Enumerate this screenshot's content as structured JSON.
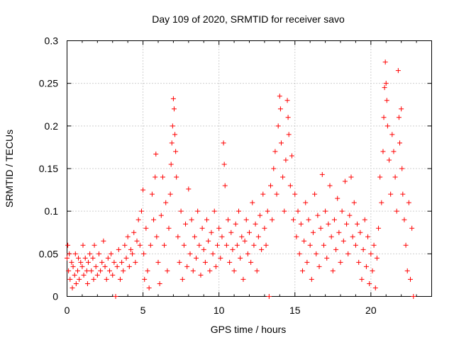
{
  "chart_data": {
    "type": "scatter",
    "title": "Day 109 of 2020, SRMTID for receiver savo",
    "xlabel": "GPS time / hours",
    "ylabel": "SRMTID / TECUs",
    "xlim": [
      0,
      24
    ],
    "ylim": [
      0,
      0.3
    ],
    "xticks": [
      0,
      5,
      10,
      15,
      20
    ],
    "xtick_labels": [
      "0",
      "5",
      "10",
      "15",
      "20"
    ],
    "yticks": [
      0,
      0.05,
      0.1,
      0.15,
      0.2,
      0.25,
      0.3
    ],
    "ytick_labels": [
      "0",
      "0.05",
      "0.1",
      "0.15",
      "0.2",
      "0.25",
      "0.3"
    ],
    "grid": true,
    "marker": "+",
    "color": "#ff0000",
    "series": [
      {
        "name": "SRMTID",
        "points": [
          [
            0.0,
            0.045
          ],
          [
            0.05,
            0.06
          ],
          [
            0.1,
            0.03
          ],
          [
            0.15,
            0.05
          ],
          [
            0.2,
            0.02
          ],
          [
            0.3,
            0.04
          ],
          [
            0.35,
            0.01
          ],
          [
            0.4,
            0.035
          ],
          [
            0.5,
            0.025
          ],
          [
            0.55,
            0.05
          ],
          [
            0.6,
            0.015
          ],
          [
            0.7,
            0.03
          ],
          [
            0.75,
            0.045
          ],
          [
            0.8,
            0.02
          ],
          [
            0.9,
            0.04
          ],
          [
            1.0,
            0.035
          ],
          [
            1.05,
            0.06
          ],
          [
            1.1,
            0.025
          ],
          [
            1.2,
            0.045
          ],
          [
            1.3,
            0.03
          ],
          [
            1.35,
            0.015
          ],
          [
            1.4,
            0.04
          ],
          [
            1.5,
            0.05
          ],
          [
            1.6,
            0.03
          ],
          [
            1.7,
            0.045
          ],
          [
            1.75,
            0.02
          ],
          [
            1.8,
            0.06
          ],
          [
            1.9,
            0.035
          ],
          [
            2.0,
            0.025
          ],
          [
            2.1,
            0.05
          ],
          [
            2.2,
            0.03
          ],
          [
            2.3,
            0.04
          ],
          [
            2.4,
            0.065
          ],
          [
            2.5,
            0.035
          ],
          [
            2.6,
            0.02
          ],
          [
            2.7,
            0.045
          ],
          [
            2.8,
            0.03
          ],
          [
            2.9,
            0.05
          ],
          [
            3.0,
            0.025
          ],
          [
            3.1,
            0.04
          ],
          [
            3.2,
            0.0
          ],
          [
            3.3,
            0.035
          ],
          [
            3.4,
            0.055
          ],
          [
            3.5,
            0.02
          ],
          [
            3.6,
            0.04
          ],
          [
            3.7,
            0.03
          ],
          [
            3.8,
            0.06
          ],
          [
            3.9,
            0.045
          ],
          [
            4.0,
            0.07
          ],
          [
            4.1,
            0.035
          ],
          [
            4.2,
            0.055
          ],
          [
            4.3,
            0.05
          ],
          [
            4.4,
            0.075
          ],
          [
            4.5,
            0.04
          ],
          [
            4.6,
            0.065
          ],
          [
            4.7,
            0.09
          ],
          [
            4.8,
            0.06
          ],
          [
            4.9,
            0.1
          ],
          [
            5.0,
            0.125
          ],
          [
            5.05,
            0.05
          ],
          [
            5.1,
            0.02
          ],
          [
            5.2,
            0.08
          ],
          [
            5.3,
            0.03
          ],
          [
            5.4,
            0.01
          ],
          [
            5.5,
            0.06
          ],
          [
            5.6,
            0.12
          ],
          [
            5.7,
            0.09
          ],
          [
            5.8,
            0.14
          ],
          [
            5.85,
            0.167
          ],
          [
            5.9,
            0.07
          ],
          [
            6.0,
            0.04
          ],
          [
            6.1,
            0.015
          ],
          [
            6.2,
            0.095
          ],
          [
            6.3,
            0.14
          ],
          [
            6.4,
            0.06
          ],
          [
            6.5,
            0.11
          ],
          [
            6.6,
            0.03
          ],
          [
            6.7,
            0.08
          ],
          [
            6.8,
            0.12
          ],
          [
            6.85,
            0.155
          ],
          [
            6.9,
            0.18
          ],
          [
            6.95,
            0.2
          ],
          [
            7.0,
            0.232
          ],
          [
            7.05,
            0.22
          ],
          [
            7.1,
            0.19
          ],
          [
            7.15,
            0.17
          ],
          [
            7.2,
            0.14
          ],
          [
            7.3,
            0.07
          ],
          [
            7.4,
            0.04
          ],
          [
            7.5,
            0.1
          ],
          [
            7.6,
            0.02
          ],
          [
            7.7,
            0.06
          ],
          [
            7.8,
            0.085
          ],
          [
            7.9,
            0.035
          ],
          [
            8.0,
            0.126
          ],
          [
            8.1,
            0.05
          ],
          [
            8.2,
            0.09
          ],
          [
            8.3,
            0.03
          ],
          [
            8.4,
            0.07
          ],
          [
            8.5,
            0.045
          ],
          [
            8.6,
            0.1
          ],
          [
            8.7,
            0.06
          ],
          [
            8.8,
            0.025
          ],
          [
            8.9,
            0.08
          ],
          [
            9.0,
            0.055
          ],
          [
            9.1,
            0.04
          ],
          [
            9.2,
            0.09
          ],
          [
            9.3,
            0.065
          ],
          [
            9.4,
            0.03
          ],
          [
            9.5,
            0.075
          ],
          [
            9.6,
            0.05
          ],
          [
            9.7,
            0.1
          ],
          [
            9.8,
            0.035
          ],
          [
            9.9,
            0.06
          ],
          [
            10.0,
            0.08
          ],
          [
            10.1,
            0.045
          ],
          [
            10.2,
            0.07
          ],
          [
            10.3,
            0.18
          ],
          [
            10.35,
            0.155
          ],
          [
            10.4,
            0.13
          ],
          [
            10.5,
            0.06
          ],
          [
            10.6,
            0.09
          ],
          [
            10.7,
            0.04
          ],
          [
            10.8,
            0.075
          ],
          [
            10.9,
            0.055
          ],
          [
            11.0,
            0.03
          ],
          [
            11.1,
            0.085
          ],
          [
            11.2,
            0.06
          ],
          [
            11.3,
            0.1
          ],
          [
            11.4,
            0.045
          ],
          [
            11.5,
            0.07
          ],
          [
            11.6,
            0.02
          ],
          [
            11.7,
            0.065
          ],
          [
            11.8,
            0.09
          ],
          [
            11.9,
            0.05
          ],
          [
            12.0,
            0.075
          ],
          [
            12.1,
            0.04
          ],
          [
            12.2,
            0.11
          ],
          [
            12.3,
            0.06
          ],
          [
            12.4,
            0.085
          ],
          [
            12.5,
            0.03
          ],
          [
            12.6,
            0.07
          ],
          [
            12.7,
            0.095
          ],
          [
            12.8,
            0.055
          ],
          [
            12.9,
            0.12
          ],
          [
            13.0,
            0.08
          ],
          [
            13.1,
            0.06
          ],
          [
            13.2,
            0.1
          ],
          [
            13.3,
            0.0
          ],
          [
            13.4,
            0.13
          ],
          [
            13.5,
            0.09
          ],
          [
            13.6,
            0.15
          ],
          [
            13.7,
            0.17
          ],
          [
            13.8,
            0.12
          ],
          [
            13.9,
            0.2
          ],
          [
            14.0,
            0.235
          ],
          [
            14.05,
            0.22
          ],
          [
            14.1,
            0.18
          ],
          [
            14.2,
            0.14
          ],
          [
            14.3,
            0.1
          ],
          [
            14.4,
            0.16
          ],
          [
            14.5,
            0.23
          ],
          [
            14.55,
            0.21
          ],
          [
            14.6,
            0.19
          ],
          [
            14.7,
            0.13
          ],
          [
            14.8,
            0.165
          ],
          [
            14.9,
            0.09
          ],
          [
            15.0,
            0.12
          ],
          [
            15.1,
            0.07
          ],
          [
            15.2,
            0.1
          ],
          [
            15.3,
            0.05
          ],
          [
            15.4,
            0.085
          ],
          [
            15.5,
            0.03
          ],
          [
            15.6,
            0.065
          ],
          [
            15.7,
            0.11
          ],
          [
            15.8,
            0.04
          ],
          [
            15.9,
            0.09
          ],
          [
            16.0,
            0.06
          ],
          [
            16.1,
            0.02
          ],
          [
            16.2,
            0.075
          ],
          [
            16.3,
            0.12
          ],
          [
            16.4,
            0.05
          ],
          [
            16.5,
            0.095
          ],
          [
            16.6,
            0.035
          ],
          [
            16.7,
            0.08
          ],
          [
            16.8,
            0.143
          ],
          [
            16.9,
            0.06
          ],
          [
            17.0,
            0.1
          ],
          [
            17.1,
            0.045
          ],
          [
            17.2,
            0.085
          ],
          [
            17.3,
            0.13
          ],
          [
            17.4,
            0.07
          ],
          [
            17.5,
            0.03
          ],
          [
            17.6,
            0.09
          ],
          [
            17.7,
            0.055
          ],
          [
            17.8,
            0.115
          ],
          [
            17.9,
            0.075
          ],
          [
            18.0,
            0.04
          ],
          [
            18.1,
            0.1
          ],
          [
            18.2,
            0.065
          ],
          [
            18.3,
            0.135
          ],
          [
            18.4,
            0.085
          ],
          [
            18.5,
            0.05
          ],
          [
            18.6,
            0.095
          ],
          [
            18.7,
            0.14
          ],
          [
            18.8,
            0.07
          ],
          [
            18.9,
            0.11
          ],
          [
            19.0,
            0.06
          ],
          [
            19.1,
            0.085
          ],
          [
            19.2,
            0.04
          ],
          [
            19.3,
            0.075
          ],
          [
            19.4,
            0.02
          ],
          [
            19.5,
            0.055
          ],
          [
            19.6,
            0.09
          ],
          [
            19.7,
            0.035
          ],
          [
            19.8,
            0.07
          ],
          [
            19.9,
            0.015
          ],
          [
            20.0,
            0.05
          ],
          [
            20.1,
            0.03
          ],
          [
            20.2,
            0.06
          ],
          [
            20.3,
            0.01
          ],
          [
            20.4,
            0.045
          ],
          [
            20.5,
            0.08
          ],
          [
            20.6,
            0.14
          ],
          [
            20.7,
            0.11
          ],
          [
            20.8,
            0.17
          ],
          [
            20.85,
            0.21
          ],
          [
            20.9,
            0.245
          ],
          [
            20.95,
            0.275
          ],
          [
            21.0,
            0.25
          ],
          [
            21.05,
            0.23
          ],
          [
            21.1,
            0.2
          ],
          [
            21.2,
            0.16
          ],
          [
            21.3,
            0.12
          ],
          [
            21.4,
            0.19
          ],
          [
            21.5,
            0.17
          ],
          [
            21.6,
            0.14
          ],
          [
            21.7,
            0.1
          ],
          [
            21.8,
            0.265
          ],
          [
            21.85,
            0.21
          ],
          [
            21.9,
            0.18
          ],
          [
            22.0,
            0.22
          ],
          [
            22.05,
            0.15
          ],
          [
            22.1,
            0.12
          ],
          [
            22.2,
            0.09
          ],
          [
            22.3,
            0.06
          ],
          [
            22.4,
            0.03
          ],
          [
            22.5,
            0.11
          ],
          [
            22.6,
            0.02
          ],
          [
            22.7,
            0.08
          ],
          [
            22.8,
            0.0
          ]
        ]
      }
    ]
  }
}
